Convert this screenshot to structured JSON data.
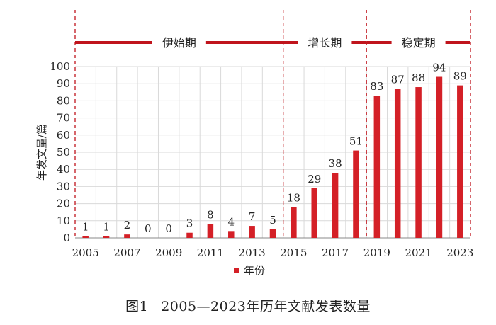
{
  "chart_data": {
    "type": "bar",
    "categories": [
      "2005",
      "2006",
      "2007",
      "2008",
      "2009",
      "2010",
      "2011",
      "2012",
      "2013",
      "2014",
      "2015",
      "2016",
      "2017",
      "2018",
      "2019",
      "2020",
      "2021",
      "2022",
      "2023"
    ],
    "x_tick_labels": [
      "2005",
      "2007",
      "2009",
      "2011",
      "2013",
      "2015",
      "2017",
      "2019",
      "2021",
      "2023"
    ],
    "series": [
      {
        "name": "年份",
        "values": [
          1,
          1,
          2,
          0,
          0,
          3,
          8,
          4,
          7,
          5,
          18,
          29,
          38,
          51,
          83,
          87,
          88,
          94,
          89
        ]
      }
    ],
    "ylabel": "年发文量/篇",
    "ylim": [
      0,
      100
    ],
    "y_ticks": [
      0,
      10,
      20,
      30,
      40,
      50,
      60,
      70,
      80,
      90,
      100
    ],
    "grid": true,
    "legend_position": "bottom-center",
    "phases": [
      {
        "label": "伊始期",
        "start": "2005",
        "end": "2014"
      },
      {
        "label": "增长期",
        "start": "2015",
        "end": "2018"
      },
      {
        "label": "稳定期",
        "start": "2019",
        "end": "2023"
      }
    ],
    "bar_color": "#d42027",
    "phase_line_color": "#c0141c"
  },
  "caption": {
    "figure_number": "图1",
    "text": "2005—2023年历年文献发表数量"
  }
}
